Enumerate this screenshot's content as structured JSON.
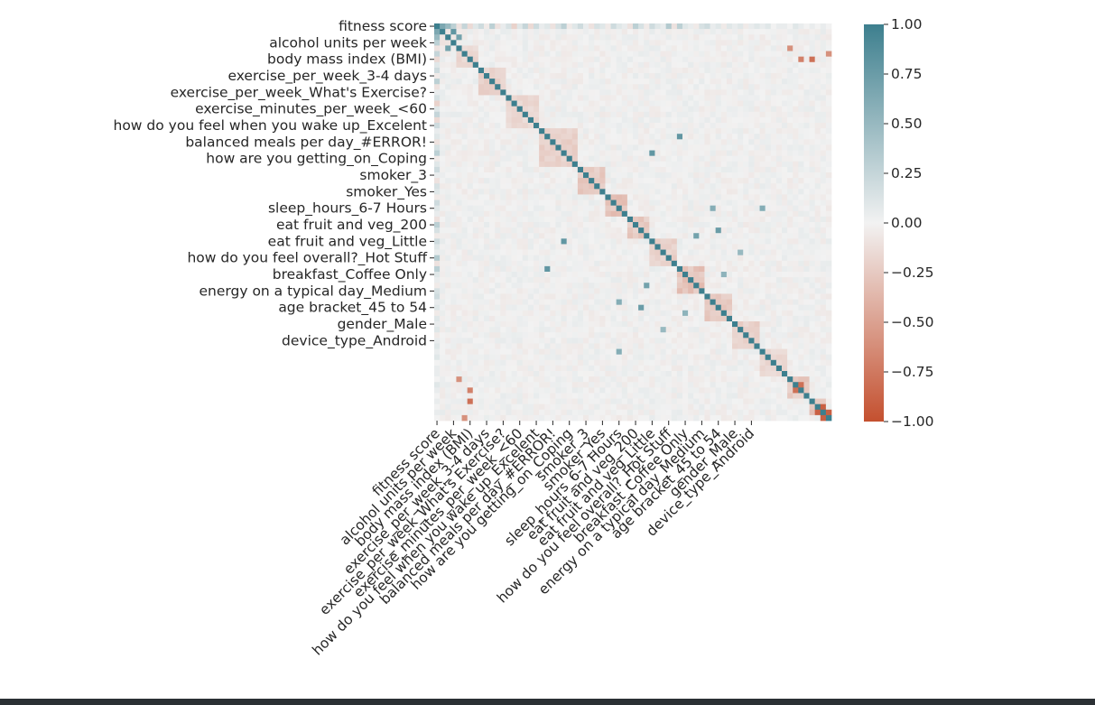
{
  "chart_data": {
    "type": "heatmap",
    "title": "",
    "xlabel": "",
    "ylabel": "",
    "size": 72,
    "tick_step": 3,
    "labeled_ticks": [
      {
        "index": 0,
        "label": "fitness score"
      },
      {
        "index": 3,
        "label": "alcohol units per week"
      },
      {
        "index": 6,
        "label": "body mass index (BMI)"
      },
      {
        "index": 9,
        "label": "exercise_per_week_3-4 days"
      },
      {
        "index": 12,
        "label": "exercise_per_week_What's Exercise?"
      },
      {
        "index": 15,
        "label": "exercise_minutes_per_week_<60"
      },
      {
        "index": 18,
        "label": "how do you feel when you wake up_Excelent"
      },
      {
        "index": 21,
        "label": "balanced meals per day_#ERROR!"
      },
      {
        "index": 24,
        "label": "how are you getting_on_Coping"
      },
      {
        "index": 27,
        "label": "smoker_3"
      },
      {
        "index": 30,
        "label": "smoker_Yes"
      },
      {
        "index": 33,
        "label": "sleep_hours_6-7 Hours"
      },
      {
        "index": 36,
        "label": "eat fruit and veg_200"
      },
      {
        "index": 39,
        "label": "eat fruit and veg_Little"
      },
      {
        "index": 42,
        "label": "how do you feel overall?_Hot Stuff"
      },
      {
        "index": 45,
        "label": "breakfast_Coffee Only"
      },
      {
        "index": 48,
        "label": "energy on a typical day_Medium"
      },
      {
        "index": 51,
        "label": "age bracket_45 to 54"
      },
      {
        "index": 54,
        "label": "gender_Male"
      },
      {
        "index": 57,
        "label": "device_type_Android"
      }
    ],
    "colorbar": {
      "vmin": -1.0,
      "vmax": 1.0,
      "ticks": [
        "1.00",
        "0.75",
        "0.50",
        "0.25",
        "0.00",
        "−0.25",
        "−0.50",
        "−0.75",
        "−1.00"
      ],
      "colors": {
        "negative": "#c4502f",
        "center": "#f2f2f2",
        "positive": "#3d7f8e"
      }
    },
    "row_pattern": [
      0.55,
      0.15,
      -0.2,
      0.3,
      -0.1,
      0.25,
      -0.15,
      0.1,
      0.2,
      -0.05,
      0.3,
      -0.1,
      0.05,
      0.15,
      -0.2,
      0.1,
      0.25,
      -0.15,
      0.2,
      0.05,
      0.1,
      -0.1,
      0.15,
      0.3,
      -0.05,
      0.1,
      0.2,
      0.05,
      -0.1,
      0.15,
      0.1,
      -0.05,
      0.2,
      0.1,
      0.05,
      -0.1,
      0.3,
      0.15,
      -0.05,
      0.2,
      0.1,
      0.05,
      0.35,
      -0.1,
      0.3,
      0.1,
      0.05,
      -0.05,
      0.15,
      0.2,
      0.05,
      0.1,
      -0.05,
      0.1,
      0.05,
      0.1,
      -0.05,
      0.05,
      0.1,
      0.05,
      0.1,
      0.0,
      0.05,
      0.05,
      0.0,
      0.1,
      0.05,
      0.0,
      0.05,
      0.0,
      0.05,
      0.0
    ],
    "blocks": [
      {
        "start": 1,
        "end": 3,
        "value": -0.1
      },
      {
        "start": 4,
        "end": 7,
        "value": -0.2
      },
      {
        "start": 8,
        "end": 12,
        "value": -0.25
      },
      {
        "start": 13,
        "end": 18,
        "value": -0.2
      },
      {
        "start": 19,
        "end": 25,
        "value": -0.25
      },
      {
        "start": 26,
        "end": 30,
        "value": -0.3
      },
      {
        "start": 31,
        "end": 34,
        "value": -0.35
      },
      {
        "start": 35,
        "end": 38,
        "value": -0.3
      },
      {
        "start": 39,
        "end": 43,
        "value": -0.25
      },
      {
        "start": 44,
        "end": 48,
        "value": -0.35
      },
      {
        "start": 49,
        "end": 53,
        "value": -0.3
      },
      {
        "start": 54,
        "end": 58,
        "value": -0.25
      },
      {
        "start": 59,
        "end": 63,
        "value": -0.2
      },
      {
        "start": 64,
        "end": 67,
        "value": -0.3
      },
      {
        "start": 68,
        "end": 70,
        "value": -0.4
      }
    ],
    "notable": [
      {
        "row": 1,
        "col": 3,
        "value": 0.8
      },
      {
        "row": 2,
        "col": 4,
        "value": 0.7
      },
      {
        "row": 4,
        "col": 2,
        "value": 0.7
      },
      {
        "row": 20,
        "col": 44,
        "value": 0.8
      },
      {
        "row": 44,
        "col": 20,
        "value": 0.8
      },
      {
        "row": 39,
        "col": 23,
        "value": 0.8
      },
      {
        "row": 23,
        "col": 39,
        "value": 0.8
      },
      {
        "row": 50,
        "col": 33,
        "value": 0.6
      },
      {
        "row": 33,
        "col": 50,
        "value": 0.6
      },
      {
        "row": 51,
        "col": 37,
        "value": 0.75
      },
      {
        "row": 37,
        "col": 51,
        "value": 0.75
      },
      {
        "row": 47,
        "col": 38,
        "value": 0.7
      },
      {
        "row": 38,
        "col": 47,
        "value": 0.7
      },
      {
        "row": 41,
        "col": 55,
        "value": 0.5
      },
      {
        "row": 55,
        "col": 41,
        "value": 0.5
      },
      {
        "row": 59,
        "col": 33,
        "value": 0.6
      },
      {
        "row": 33,
        "col": 59,
        "value": 0.6
      },
      {
        "row": 52,
        "col": 45,
        "value": 0.55
      },
      {
        "row": 45,
        "col": 52,
        "value": 0.55
      },
      {
        "row": 4,
        "col": 64,
        "value": -0.6
      },
      {
        "row": 6,
        "col": 66,
        "value": -0.7
      },
      {
        "row": 6,
        "col": 68,
        "value": -0.8
      },
      {
        "row": 5,
        "col": 71,
        "value": -0.6
      },
      {
        "row": 64,
        "col": 4,
        "value": -0.6
      },
      {
        "row": 66,
        "col": 6,
        "value": -0.7
      },
      {
        "row": 68,
        "col": 6,
        "value": -0.8
      },
      {
        "row": 71,
        "col": 5,
        "value": -0.6
      },
      {
        "row": 69,
        "col": 70,
        "value": -0.9
      },
      {
        "row": 70,
        "col": 69,
        "value": -0.9
      },
      {
        "row": 70,
        "col": 71,
        "value": -0.9
      },
      {
        "row": 71,
        "col": 70,
        "value": -0.9
      },
      {
        "row": 65,
        "col": 66,
        "value": -0.8
      },
      {
        "row": 66,
        "col": 65,
        "value": -0.8
      },
      {
        "row": 0,
        "col": 1,
        "value": 0.65
      },
      {
        "row": 1,
        "col": 0,
        "value": 0.65
      },
      {
        "row": 0,
        "col": 2,
        "value": 0.5
      },
      {
        "row": 2,
        "col": 0,
        "value": 0.5
      }
    ]
  }
}
